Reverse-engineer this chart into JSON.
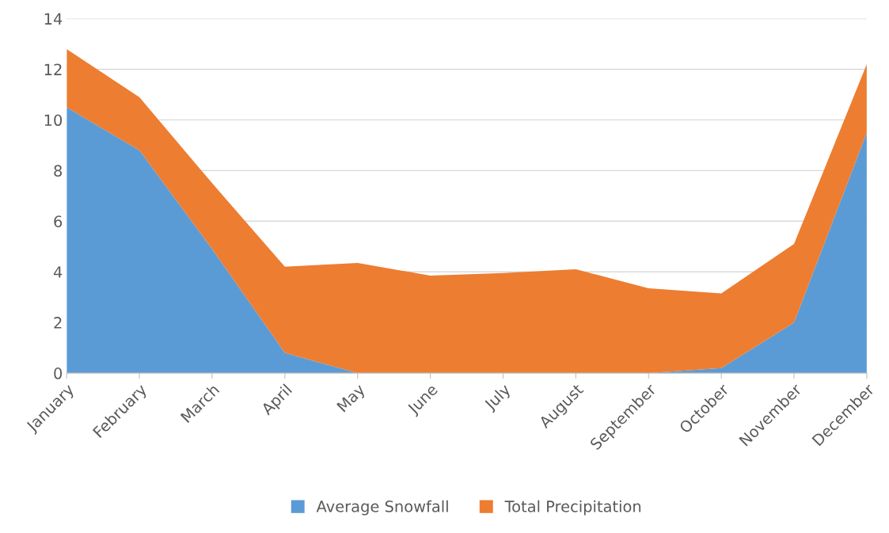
{
  "chart_data": {
    "type": "area",
    "stacked": true,
    "categories": [
      "January",
      "February",
      "March",
      "April",
      "May",
      "June",
      "July",
      "August",
      "September",
      "October",
      "November",
      "December"
    ],
    "series": [
      {
        "name": "Average Snowfall",
        "color": "#5b9bd5",
        "values": [
          10.5,
          8.8,
          4.9,
          0.8,
          0,
          0,
          0,
          0,
          0,
          0.2,
          2.0,
          9.5
        ]
      },
      {
        "name": "Total Precipitation",
        "color": "#ed7d31",
        "values": [
          2.3,
          2.1,
          2.6,
          3.4,
          4.35,
          3.85,
          3.95,
          4.1,
          3.35,
          2.95,
          3.1,
          2.7
        ]
      }
    ],
    "ylim": [
      0,
      14
    ],
    "yticks": [
      0,
      2,
      4,
      6,
      8,
      10,
      12,
      14
    ],
    "grid": "y",
    "legend": "bottom"
  }
}
